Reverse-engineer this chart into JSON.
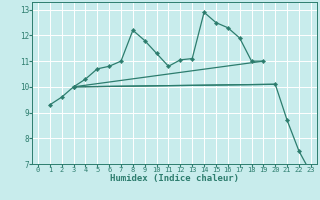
{
  "bg_color": "#c8ecec",
  "grid_color": "#ffffff",
  "line_color": "#2d7d6e",
  "xlabel": "Humidex (Indice chaleur)",
  "xlim": [
    -0.5,
    23.5
  ],
  "ylim": [
    7,
    13.3
  ],
  "xticks": [
    0,
    1,
    2,
    3,
    4,
    5,
    6,
    7,
    8,
    9,
    10,
    11,
    12,
    13,
    14,
    15,
    16,
    17,
    18,
    19,
    20,
    21,
    22,
    23
  ],
  "yticks": [
    7,
    8,
    9,
    10,
    11,
    12,
    13
  ],
  "series": [
    {
      "x": [
        1,
        2,
        3,
        4,
        5,
        6,
        7,
        8,
        9,
        10,
        11,
        12,
        13,
        14,
        15,
        16,
        17,
        18,
        19
      ],
      "y": [
        9.3,
        9.6,
        10.0,
        10.3,
        10.7,
        10.8,
        11.0,
        12.2,
        11.8,
        11.3,
        10.8,
        11.05,
        11.1,
        12.9,
        12.5,
        12.3,
        11.9,
        11.0,
        11.0
      ],
      "has_markers": true
    },
    {
      "x": [
        3,
        20,
        21,
        22,
        23
      ],
      "y": [
        10.0,
        10.1,
        8.7,
        7.5,
        6.65
      ],
      "has_markers": true
    },
    {
      "x": [
        3,
        19
      ],
      "y": [
        10.0,
        11.0
      ],
      "has_markers": false
    },
    {
      "x": [
        3,
        20
      ],
      "y": [
        10.0,
        10.1
      ],
      "has_markers": false
    }
  ]
}
